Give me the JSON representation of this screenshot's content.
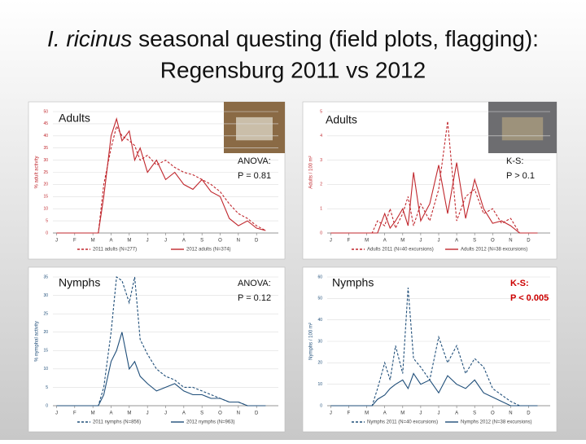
{
  "title": {
    "italic": "I. ricinus",
    "rest": " seasonal questing (field plots, flagging):",
    "line2": "Regensburg 2011 vs 2012"
  },
  "chart_data": [
    {
      "type": "line",
      "y_label": "% adult activity",
      "x": [
        0,
        1,
        2,
        2.3,
        2.6,
        3,
        3.3,
        3.6,
        4,
        4.3,
        4.6,
        5,
        5.5,
        6,
        6.5,
        7,
        7.5,
        8,
        8.5,
        9,
        9.5,
        10,
        10.5,
        11,
        11.5
      ],
      "xlim": [
        -0.2,
        12.2
      ],
      "xticks": [
        {
          "value": 0,
          "label": "J"
        },
        {
          "value": 1,
          "label": "F"
        },
        {
          "value": 2,
          "label": "M"
        },
        {
          "value": 3,
          "label": "A"
        },
        {
          "value": 4,
          "label": "M"
        },
        {
          "value": 5,
          "label": "J"
        },
        {
          "value": 6,
          "label": "J"
        },
        {
          "value": 7,
          "label": "A"
        },
        {
          "value": 8,
          "label": "S"
        },
        {
          "value": 9,
          "label": "O"
        },
        {
          "value": 10,
          "label": "N"
        },
        {
          "value": 11,
          "label": "D"
        }
      ],
      "ylim": [
        0,
        50
      ],
      "yticks": [
        0,
        5,
        10,
        15,
        20,
        25,
        30,
        35,
        40,
        45,
        50
      ],
      "series": [
        {
          "name": "2011 adults (N=277)",
          "color": "#c0272d",
          "line_style": "dashed",
          "values": [
            0,
            0,
            0,
            0,
            20,
            35,
            44,
            40,
            38,
            36,
            30,
            32,
            28,
            30,
            27,
            25,
            24,
            22,
            20,
            17,
            12,
            8,
            6,
            3,
            1
          ]
        },
        {
          "name": "2012 adults (N=374)",
          "color": "#c0272d",
          "line_style": "solid",
          "values": [
            0,
            0,
            0,
            0,
            15,
            40,
            47,
            38,
            42,
            30,
            35,
            25,
            30,
            22,
            25,
            20,
            18,
            22,
            17,
            15,
            6,
            3,
            5,
            2,
            1
          ]
        }
      ],
      "annotations": [
        {
          "text": "Adults"
        },
        {
          "text": "ANOVA:"
        },
        {
          "text": "P = 0.81"
        }
      ]
    },
    {
      "type": "line",
      "y_label": "Adults / 100 m²",
      "x": [
        0,
        1,
        2,
        2.3,
        2.6,
        3,
        3.3,
        3.6,
        4,
        4.3,
        4.6,
        5,
        5.5,
        6,
        6.5,
        7,
        7.5,
        8,
        8.5,
        9,
        9.5,
        10,
        10.5,
        11,
        11.5
      ],
      "xlim": [
        -0.2,
        12.2
      ],
      "xticks": [
        {
          "value": 0,
          "label": "J"
        },
        {
          "value": 1,
          "label": "F"
        },
        {
          "value": 2,
          "label": "M"
        },
        {
          "value": 3,
          "label": "A"
        },
        {
          "value": 4,
          "label": "M"
        },
        {
          "value": 5,
          "label": "J"
        },
        {
          "value": 6,
          "label": "J"
        },
        {
          "value": 7,
          "label": "A"
        },
        {
          "value": 8,
          "label": "S"
        },
        {
          "value": 9,
          "label": "O"
        },
        {
          "value": 10,
          "label": "N"
        },
        {
          "value": 11,
          "label": "D"
        }
      ],
      "ylim": [
        0,
        5
      ],
      "yticks": [
        0,
        1,
        2,
        3,
        4,
        5
      ],
      "series": [
        {
          "name": "Adults 2011 (N=40 excursions)",
          "color": "#c0272d",
          "line_style": "dashed",
          "values": [
            0,
            0,
            0,
            0,
            0.5,
            0.3,
            1,
            0.2,
            0.8,
            1.5,
            0.3,
            1.2,
            0.5,
            1.8,
            4.6,
            0.5,
            1.5,
            1.8,
            0.8,
            1,
            0.4,
            0.6,
            0,
            0,
            0
          ]
        },
        {
          "name": "Adults 2012 (N=38 excursions)",
          "color": "#c0272d",
          "line_style": "solid",
          "values": [
            0,
            0,
            0,
            0,
            0,
            0.8,
            0.2,
            0.5,
            1,
            0.3,
            2.5,
            0.5,
            1.2,
            2.8,
            0.8,
            2.9,
            0.6,
            2.2,
            1,
            0.4,
            0.5,
            0.3,
            0,
            0,
            0
          ]
        }
      ],
      "annotations": [
        {
          "text": "Adults"
        },
        {
          "text": "K-S:"
        },
        {
          "text": "P > 0.1"
        }
      ]
    },
    {
      "type": "line",
      "y_label": "% nymphal activity",
      "x": [
        0,
        1,
        2,
        2.3,
        2.6,
        3,
        3.3,
        3.6,
        4,
        4.3,
        4.6,
        5,
        5.5,
        6,
        6.5,
        7,
        7.5,
        8,
        8.5,
        9,
        9.5,
        10,
        10.5,
        11,
        11.5
      ],
      "xlim": [
        -0.2,
        12.2
      ],
      "xticks": [
        {
          "value": 0,
          "label": "J"
        },
        {
          "value": 1,
          "label": "F"
        },
        {
          "value": 2,
          "label": "M"
        },
        {
          "value": 3,
          "label": "A"
        },
        {
          "value": 4,
          "label": "M"
        },
        {
          "value": 5,
          "label": "J"
        },
        {
          "value": 6,
          "label": "J"
        },
        {
          "value": 7,
          "label": "A"
        },
        {
          "value": 8,
          "label": "S"
        },
        {
          "value": 9,
          "label": "O"
        },
        {
          "value": 10,
          "label": "N"
        },
        {
          "value": 11,
          "label": "D"
        }
      ],
      "ylim": [
        0,
        35
      ],
      "yticks": [
        0,
        5,
        10,
        15,
        20,
        25,
        30,
        35
      ],
      "series": [
        {
          "name": "2011 nymphs (N=856)",
          "color": "#1f4e79",
          "line_style": "dashed",
          "values": [
            0,
            0,
            0,
            0,
            5,
            20,
            35,
            34,
            28,
            35,
            18,
            14,
            10,
            8,
            7,
            5,
            5,
            4,
            3,
            2,
            1,
            1,
            0,
            0,
            0
          ]
        },
        {
          "name": "2012 nymphs (N=963)",
          "color": "#1f4e79",
          "line_style": "solid",
          "values": [
            0,
            0,
            0,
            0,
            3,
            12,
            15,
            20,
            10,
            12,
            8,
            6,
            4,
            5,
            6,
            4,
            3,
            3,
            2,
            2,
            1,
            1,
            0,
            0,
            0
          ]
        }
      ],
      "annotations": [
        {
          "text": "Nymphs"
        },
        {
          "text": "ANOVA:"
        },
        {
          "text": "P = 0.12"
        }
      ]
    },
    {
      "type": "line",
      "y_label": "Nymphs / 100 m²",
      "x": [
        0,
        1,
        2,
        2.3,
        2.6,
        3,
        3.3,
        3.6,
        4,
        4.3,
        4.6,
        5,
        5.5,
        6,
        6.5,
        7,
        7.5,
        8,
        8.5,
        9,
        9.5,
        10,
        10.5,
        11,
        11.5
      ],
      "xlim": [
        -0.2,
        12.2
      ],
      "xticks": [
        {
          "value": 0,
          "label": "J"
        },
        {
          "value": 1,
          "label": "F"
        },
        {
          "value": 2,
          "label": "M"
        },
        {
          "value": 3,
          "label": "A"
        },
        {
          "value": 4,
          "label": "M"
        },
        {
          "value": 5,
          "label": "J"
        },
        {
          "value": 6,
          "label": "J"
        },
        {
          "value": 7,
          "label": "A"
        },
        {
          "value": 8,
          "label": "S"
        },
        {
          "value": 9,
          "label": "O"
        },
        {
          "value": 10,
          "label": "N"
        },
        {
          "value": 11,
          "label": "D"
        }
      ],
      "ylim": [
        0,
        60
      ],
      "yticks": [
        0,
        10,
        20,
        30,
        40,
        50,
        60
      ],
      "series": [
        {
          "name": "Nymphs 2011 (N=40 excursions)",
          "color": "#1f4e79",
          "line_style": "dashed",
          "values": [
            0,
            0,
            0,
            0,
            8,
            20,
            12,
            28,
            15,
            55,
            22,
            18,
            12,
            32,
            20,
            28,
            15,
            22,
            18,
            8,
            5,
            2,
            0,
            0,
            0
          ]
        },
        {
          "name": "Nymphs 2012 (N=38 excursions)",
          "color": "#1f4e79",
          "line_style": "solid",
          "values": [
            0,
            0,
            0,
            0,
            3,
            5,
            8,
            10,
            12,
            8,
            15,
            10,
            12,
            6,
            14,
            10,
            8,
            12,
            6,
            4,
            2,
            0,
            0,
            0,
            0
          ]
        }
      ],
      "annotations": [
        {
          "text": "Nymphs"
        },
        {
          "text": "K-S:",
          "color": "#cc0000"
        },
        {
          "text": "P < 0.005",
          "color": "#cc0000"
        }
      ]
    }
  ]
}
